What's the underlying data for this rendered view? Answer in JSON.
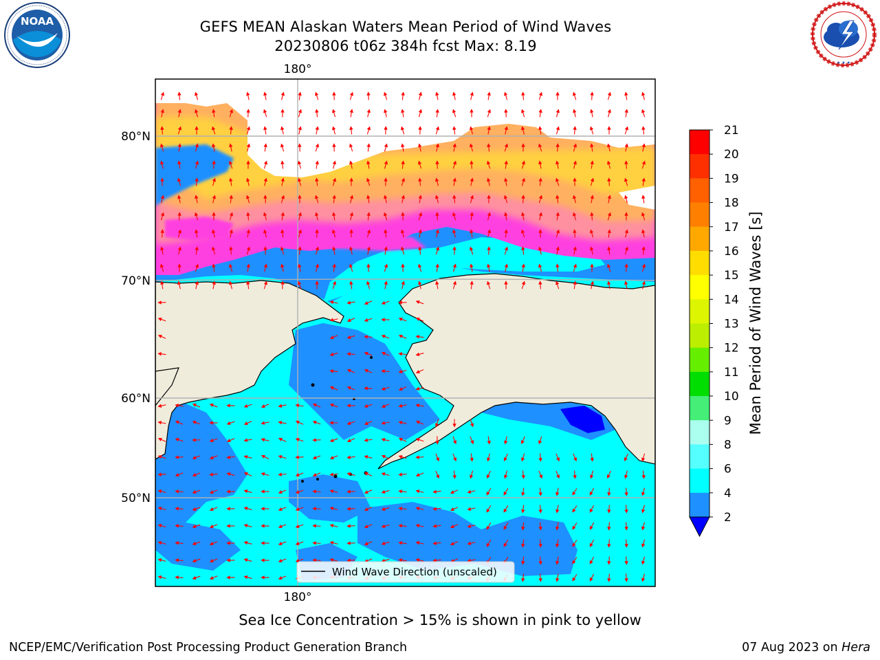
{
  "header": {
    "title_line1": "GEFS MEAN Alaskan Waters Mean Period of Wind Waves",
    "title_line2": "20230806 t06z 384h fcst   Max: 8.19"
  },
  "logos": {
    "left": "NOAA",
    "left_ring": "NATIONAL OCEANIC AND ATMOSPHERIC ADMINISTRATION · U.S. DEPARTMENT OF COMMERCE",
    "right_ring": "NATIONAL WEATHER SERVICE"
  },
  "map": {
    "lon_label_top": "180°",
    "lon_label_bottom": "180°",
    "lat_labels": [
      "80°N",
      "70°N",
      "60°N",
      "50°N"
    ],
    "legend_label": "Wind Wave Direction (unscaled)",
    "colors": {
      "land": "#efecdc",
      "ocean_light": "#00ffff",
      "ocean_mid": "#1e90ff",
      "ocean_deep": "#0000ff",
      "ice_pink": "#ff40e0",
      "ice_orange": "#ffa040",
      "ice_yellow": "#ffe040",
      "arrow": "#ff0000"
    }
  },
  "colorbar": {
    "label": "Mean Period of Wind Waves [s]",
    "ticks": [
      "21",
      "20",
      "19",
      "18",
      "17",
      "16",
      "15",
      "14",
      "13",
      "12",
      "11",
      "10",
      "9",
      "8",
      "6",
      "4",
      "2"
    ],
    "colors": [
      "#ff0000",
      "#ff3000",
      "#ff6000",
      "#ff8000",
      "#ffa800",
      "#ffdd00",
      "#ffff00",
      "#ddf500",
      "#bbee00",
      "#66ee00",
      "#00dd00",
      "#44ee77",
      "#aaffee",
      "#55ffff",
      "#00ffff",
      "#1e90ff"
    ],
    "extend_color": "#0000ff"
  },
  "caption": "Sea Ice Concentration > 15% is shown in pink to yellow",
  "footer": {
    "left": "NCEP/EMC/Verification Post Processing Product Generation Branch",
    "right_text": "07 Aug 2023 on ",
    "right_host": "Hera"
  }
}
